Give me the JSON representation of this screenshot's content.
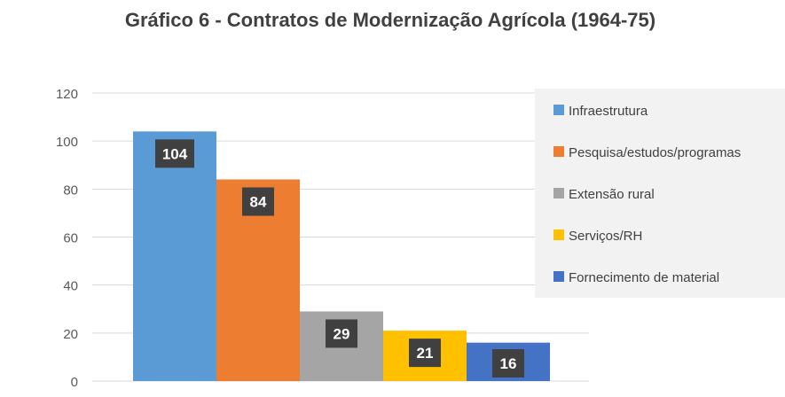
{
  "chart_data": {
    "type": "bar",
    "title": "Gráfico 6 - Contratos de Modernização Agrícola (1964-75)",
    "xlabel": "",
    "ylabel": "",
    "ylim": [
      0,
      120
    ],
    "yticks": [
      0,
      20,
      40,
      60,
      80,
      100,
      120
    ],
    "grid": true,
    "legend_position": "right",
    "series": [
      {
        "name": "Infraestrutura",
        "values": [
          104
        ],
        "color": "#5B9BD5"
      },
      {
        "name": "Pesquisa/estudos/programas",
        "values": [
          84
        ],
        "color": "#ED7D31"
      },
      {
        "name": "Extensão rural",
        "values": [
          29
        ],
        "color": "#A5A5A5"
      },
      {
        "name": "Serviços/RH",
        "values": [
          21
        ],
        "color": "#FFC000"
      },
      {
        "name": "Fornecimento de material",
        "values": [
          16
        ],
        "color": "#4472C4"
      }
    ],
    "data_labels": [
      "104",
      "84",
      "29",
      "21",
      "16"
    ]
  }
}
